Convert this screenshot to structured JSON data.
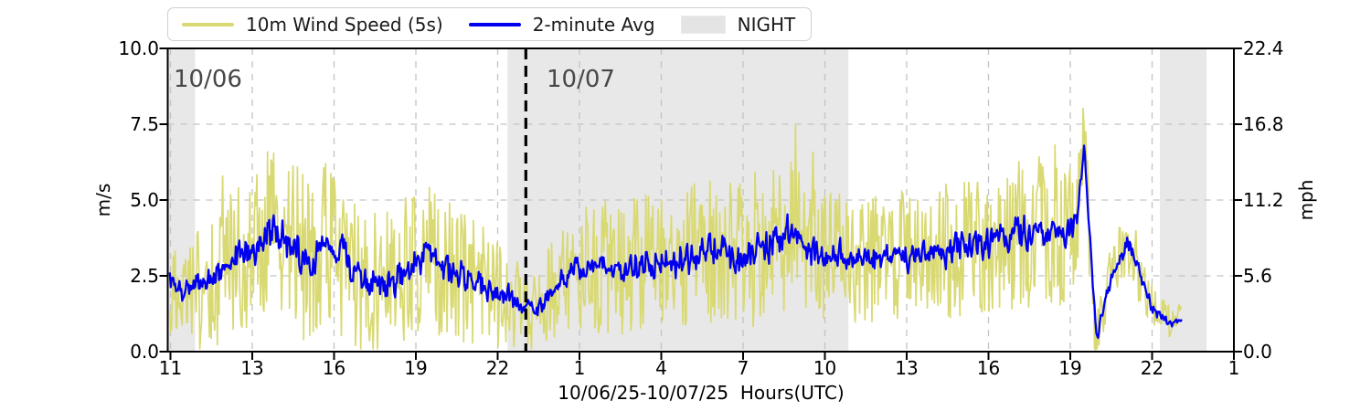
{
  "chart_data": {
    "type": "line",
    "title": "",
    "xlabel": "10/06/25-10/07/25  Hours(UTC)",
    "ylabel_left": "m/s",
    "ylabel_right": "mph",
    "ylim": [
      0,
      10
    ],
    "ylim_right": [
      0,
      22.4
    ],
    "grid": true,
    "legend_position": "top-left",
    "legend": {
      "items": [
        {
          "label": "10m Wind Speed (5s)",
          "color": "#d9d973",
          "kind": "line"
        },
        {
          "label": "2-minute Avg",
          "color": "#0000ee",
          "kind": "line"
        },
        {
          "label": "NIGHT",
          "color": "#e4e4e4",
          "kind": "patch"
        }
      ]
    },
    "xtick_labels": [
      "11",
      "13",
      "16",
      "19",
      "22",
      "1",
      "4",
      "7",
      "10",
      "13",
      "16",
      "19",
      "22",
      "1"
    ],
    "yticks_left": [
      [
        0,
        "0.0"
      ],
      [
        2.5,
        "2.5"
      ],
      [
        5,
        "5.0"
      ],
      [
        7.5,
        "7.5"
      ],
      [
        10,
        "10.0"
      ]
    ],
    "yticks_right": [
      [
        0,
        "0.0"
      ],
      [
        2.5,
        "5.6"
      ],
      [
        5,
        "11.2"
      ],
      [
        7.5,
        "16.8"
      ],
      [
        10,
        "22.4"
      ]
    ],
    "night_bands": [
      [
        0.0,
        0.0257
      ],
      [
        0.3188,
        0.6384
      ],
      [
        0.9306,
        0.9743
      ]
    ],
    "night_color": "#e8e8e8",
    "grid_color": "#c3c3c3",
    "day_separator_x": 0.3359,
    "annotations": [
      {
        "text": "10/06",
        "x": 0.006
      },
      {
        "text": "10/07",
        "x": 0.356
      }
    ],
    "series": [
      {
        "name": "10m Wind Speed (5s)",
        "color": "#d9d973",
        "role": "gust"
      },
      {
        "name": "2-minute Avg",
        "color": "#0000ee",
        "role": "average"
      }
    ],
    "data_start": 0.002,
    "data_end": 0.951,
    "noise_seed": 7,
    "avg_points": [
      [
        0.0,
        2.3
      ],
      [
        0.015,
        2.0
      ],
      [
        0.035,
        2.2
      ],
      [
        0.055,
        2.9
      ],
      [
        0.08,
        3.4
      ],
      [
        0.1,
        4.1
      ],
      [
        0.115,
        3.4
      ],
      [
        0.13,
        3.1
      ],
      [
        0.15,
        3.6
      ],
      [
        0.17,
        2.9
      ],
      [
        0.19,
        2.3
      ],
      [
        0.205,
        2.2
      ],
      [
        0.22,
        2.7
      ],
      [
        0.235,
        3.0
      ],
      [
        0.243,
        3.3
      ],
      [
        0.254,
        2.9
      ],
      [
        0.27,
        2.6
      ],
      [
        0.285,
        2.4
      ],
      [
        0.3,
        2.1
      ],
      [
        0.315,
        1.9
      ],
      [
        0.325,
        1.7
      ],
      [
        0.336,
        1.5
      ],
      [
        0.345,
        1.3
      ],
      [
        0.355,
        1.8
      ],
      [
        0.366,
        2.3
      ],
      [
        0.38,
        2.6
      ],
      [
        0.4,
        2.8
      ],
      [
        0.42,
        2.7
      ],
      [
        0.44,
        2.8
      ],
      [
        0.46,
        3.0
      ],
      [
        0.48,
        3.0
      ],
      [
        0.5,
        3.2
      ],
      [
        0.52,
        3.4
      ],
      [
        0.535,
        3.0
      ],
      [
        0.555,
        3.5
      ],
      [
        0.576,
        3.7
      ],
      [
        0.589,
        4.0
      ],
      [
        0.6,
        3.3
      ],
      [
        0.615,
        3.0
      ],
      [
        0.63,
        3.1
      ],
      [
        0.65,
        3.0
      ],
      [
        0.67,
        3.1
      ],
      [
        0.69,
        3.2
      ],
      [
        0.71,
        3.1
      ],
      [
        0.73,
        3.3
      ],
      [
        0.75,
        3.4
      ],
      [
        0.77,
        3.6
      ],
      [
        0.79,
        3.7
      ],
      [
        0.81,
        4.0
      ],
      [
        0.825,
        3.9
      ],
      [
        0.84,
        3.8
      ],
      [
        0.853,
        4.2
      ],
      [
        0.859,
        6.8
      ],
      [
        0.864,
        4.2
      ],
      [
        0.869,
        1.2
      ],
      [
        0.871,
        0.3
      ],
      [
        0.878,
        1.6
      ],
      [
        0.884,
        2.3
      ],
      [
        0.893,
        3.1
      ],
      [
        0.9,
        3.7
      ],
      [
        0.908,
        3.0
      ],
      [
        0.916,
        2.1
      ],
      [
        0.923,
        1.4
      ],
      [
        0.932,
        1.1
      ],
      [
        0.94,
        0.9
      ],
      [
        0.946,
        1.1
      ],
      [
        0.951,
        1.0
      ]
    ],
    "gust_amplitude_points": [
      [
        0.0,
        1.7
      ],
      [
        0.04,
        2.0
      ],
      [
        0.08,
        2.7
      ],
      [
        0.12,
        2.9
      ],
      [
        0.16,
        2.7
      ],
      [
        0.2,
        2.4
      ],
      [
        0.24,
        2.6
      ],
      [
        0.28,
        2.2
      ],
      [
        0.32,
        1.7
      ],
      [
        0.336,
        1.3
      ],
      [
        0.36,
        1.7
      ],
      [
        0.4,
        2.2
      ],
      [
        0.44,
        2.3
      ],
      [
        0.48,
        2.4
      ],
      [
        0.52,
        2.5
      ],
      [
        0.56,
        2.6
      ],
      [
        0.59,
        2.5
      ],
      [
        0.62,
        2.2
      ],
      [
        0.66,
        2.1
      ],
      [
        0.7,
        2.2
      ],
      [
        0.74,
        2.3
      ],
      [
        0.78,
        2.4
      ],
      [
        0.81,
        2.6
      ],
      [
        0.84,
        2.4
      ],
      [
        0.859,
        2.0
      ],
      [
        0.871,
        0.9
      ],
      [
        0.89,
        1.2
      ],
      [
        0.905,
        1.4
      ],
      [
        0.923,
        0.8
      ],
      [
        0.94,
        0.6
      ],
      [
        0.951,
        0.5
      ]
    ]
  }
}
